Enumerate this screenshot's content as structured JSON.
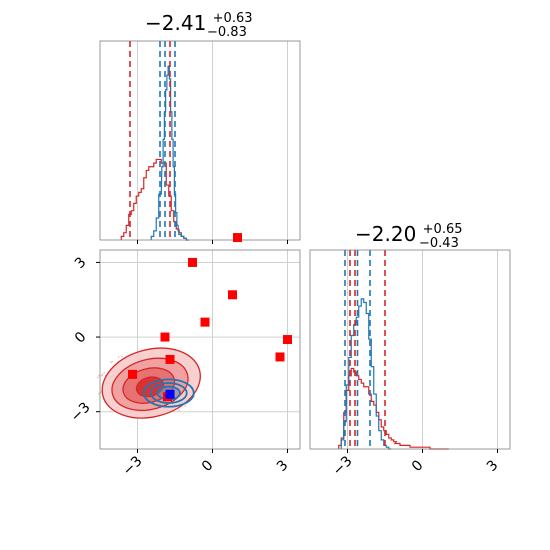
{
  "chart_data": {
    "type": "corner",
    "grid": true,
    "colors": {
      "red": "#d62728",
      "blue": "#1f77b4",
      "marker_red": "#ff0000",
      "marker_blue": "#0000ff"
    },
    "axis_range": [
      -4.5,
      3.5
    ],
    "ticks": {
      "values": [
        -3,
        0,
        3
      ],
      "labels": [
        "−3",
        "0",
        "3"
      ]
    },
    "titles": [
      {
        "value": "−2.41",
        "plus": "+0.63",
        "minus": "−0.83"
      },
      {
        "value": "−2.20",
        "plus": "+0.65",
        "minus": "−0.43"
      }
    ],
    "param1_hist": {
      "red_quantile_lines": [
        -3.3,
        -1.7
      ],
      "blue_quantile_lines": [
        -2.1,
        -1.9,
        -1.5
      ],
      "red_x": [
        -3.6,
        -3.5,
        -3.4,
        -3.3,
        -3.2,
        -3.1,
        -3.0,
        -2.9,
        -2.8,
        -2.7,
        -2.6,
        -2.5,
        -2.4,
        -2.3,
        -2.2,
        -2.1,
        -2.0,
        -1.9,
        -1.8,
        -1.7,
        -1.6,
        -1.5,
        -1.4,
        -1.3,
        -1.2,
        -1.1,
        -1.0
      ],
      "red_y": [
        0.02,
        0.04,
        0.08,
        0.14,
        0.16,
        0.2,
        0.24,
        0.26,
        0.28,
        0.34,
        0.38,
        0.4,
        0.4,
        0.42,
        0.44,
        0.44,
        0.42,
        0.42,
        0.3,
        0.24,
        0.16,
        0.1,
        0.06,
        0.04,
        0.02,
        0.01,
        0.0
      ],
      "blue_x": [
        -2.4,
        -2.3,
        -2.2,
        -2.1,
        -2.0,
        -1.95,
        -1.9,
        -1.85,
        -1.8,
        -1.75,
        -1.7,
        -1.65,
        -1.6,
        -1.55,
        -1.5,
        -1.45,
        -1.4,
        -1.35,
        -1.3,
        -1.2,
        -1.1,
        -1.0
      ],
      "blue_y": [
        0.02,
        0.05,
        0.12,
        0.25,
        0.4,
        0.55,
        0.7,
        0.82,
        0.9,
        0.95,
        0.88,
        0.7,
        0.55,
        0.4,
        0.25,
        0.15,
        0.08,
        0.05,
        0.03,
        0.02,
        0.01,
        0.0
      ]
    },
    "param2_hist": {
      "red_quantile_lines": [
        -2.9,
        -2.7,
        -1.5
      ],
      "blue_quantile_lines": [
        -3.1,
        -2.6,
        -2.1
      ],
      "red_x": [
        -3.3,
        -3.2,
        -3.1,
        -3.0,
        -2.9,
        -2.8,
        -2.7,
        -2.6,
        -2.5,
        -2.4,
        -2.3,
        -2.2,
        -2.1,
        -2.0,
        -1.9,
        -1.8,
        -1.7,
        -1.6,
        -1.5,
        -1.4,
        -1.3,
        -1.2,
        -1.1,
        -1.0,
        -0.8,
        -0.6,
        -0.4,
        -0.2,
        0.0,
        0.2,
        0.4,
        0.6,
        0.8,
        1.0
      ],
      "red_y": [
        0.02,
        0.06,
        0.2,
        0.32,
        0.4,
        0.44,
        0.42,
        0.4,
        0.38,
        0.36,
        0.34,
        0.34,
        0.3,
        0.26,
        0.24,
        0.2,
        0.16,
        0.12,
        0.1,
        0.08,
        0.06,
        0.05,
        0.04,
        0.03,
        0.02,
        0.02,
        0.01,
        0.01,
        0.01,
        0.01,
        0.0,
        0.0,
        0.0,
        0.0
      ],
      "blue_x": [
        -3.2,
        -3.1,
        -3.0,
        -2.9,
        -2.8,
        -2.7,
        -2.6,
        -2.5,
        -2.4,
        -2.3,
        -2.2,
        -2.1,
        -2.0,
        -1.9,
        -1.8,
        -1.7,
        -1.6,
        -1.5,
        -1.4,
        -1.3
      ],
      "blue_y": [
        0.05,
        0.15,
        0.35,
        0.5,
        0.62,
        0.68,
        0.72,
        0.78,
        0.82,
        0.8,
        0.74,
        0.6,
        0.45,
        0.3,
        0.18,
        0.1,
        0.05,
        0.02,
        0.01,
        0.0
      ]
    },
    "scatter_red_squares": [
      [
        1.0,
        4.0
      ],
      [
        -0.8,
        3.0
      ],
      [
        0.8,
        1.7
      ],
      [
        -0.3,
        0.6
      ],
      [
        -1.9,
        0.0
      ],
      [
        3.0,
        -0.1
      ],
      [
        -1.7,
        -0.9
      ],
      [
        2.7,
        -0.8
      ],
      [
        -3.2,
        -1.5
      ],
      [
        -1.8,
        -2.4
      ]
    ],
    "blue_marker": [
      -1.7,
      -2.3
    ]
  }
}
